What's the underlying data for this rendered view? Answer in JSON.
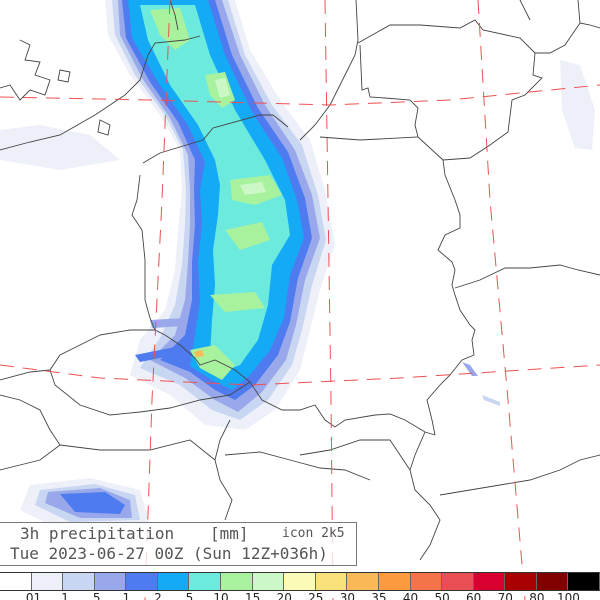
{
  "title": {
    "variable": "3h precipitation",
    "unit": "[mm]",
    "model": "icon 2k5",
    "valid_time": "Tue 2023-06-27 00Z (Sun 12Z+036h)"
  },
  "legend": {
    "labels": [
      ".01",
      ".1",
      ".5",
      "1",
      "2",
      "5",
      "10",
      "15",
      "20",
      "25",
      "30",
      "35",
      "40",
      "50",
      "60",
      "70",
      "80",
      "100"
    ],
    "colors": [
      "#ffffff",
      "#eef0f9",
      "#c9d6f2",
      "#98a8ea",
      "#4e7cf0",
      "#14aaf5",
      "#6beadd",
      "#a8f29e",
      "#ccf8c8",
      "#fafbb7",
      "#f8e07a",
      "#fbb856",
      "#fb9a3e",
      "#f5734a",
      "#e84e52",
      "#d8002f",
      "#a80000",
      "#800000",
      "#000000"
    ]
  },
  "colors": {
    "graticule": "#f05050",
    "borders": "#444444"
  }
}
